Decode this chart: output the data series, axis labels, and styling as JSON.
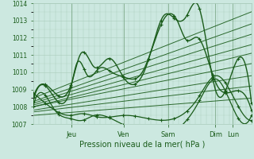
{
  "bg_color": "#cce8e0",
  "grid_color": "#aaccbb",
  "line_color": "#1a5c1a",
  "text_color": "#1a5c1a",
  "xlabel": "Pression niveau de la mer( hPa )",
  "ylim": [
    1007,
    1014
  ],
  "yticks": [
    1007,
    1008,
    1009,
    1010,
    1011,
    1012,
    1013,
    1014
  ],
  "xlim": [
    0,
    1
  ],
  "day_positions": [
    0.175,
    0.415,
    0.62,
    0.835,
    0.915
  ],
  "day_labels": [
    "Jeu",
    "Ven",
    "Sam",
    "Dim",
    "Lun"
  ],
  "straight_lines": [
    {
      "x0": 0.0,
      "y0": 1008.5,
      "x1": 1.0,
      "y1": 1013.5
    },
    {
      "x0": 0.0,
      "y0": 1008.3,
      "x1": 1.0,
      "y1": 1012.8
    },
    {
      "x0": 0.0,
      "y0": 1008.2,
      "x1": 1.0,
      "y1": 1012.2
    },
    {
      "x0": 0.0,
      "y0": 1008.1,
      "x1": 1.0,
      "y1": 1011.6
    },
    {
      "x0": 0.0,
      "y0": 1008.0,
      "x1": 1.0,
      "y1": 1011.1
    },
    {
      "x0": 0.0,
      "y0": 1008.0,
      "x1": 1.0,
      "y1": 1010.5
    },
    {
      "x0": 0.0,
      "y0": 1007.8,
      "x1": 1.0,
      "y1": 1009.8
    },
    {
      "x0": 0.0,
      "y0": 1007.7,
      "x1": 1.0,
      "y1": 1009.2
    },
    {
      "x0": 0.0,
      "y0": 1007.5,
      "x1": 1.0,
      "y1": 1008.5
    }
  ],
  "wavy_lines": [
    {
      "keypoints_x": [
        0.0,
        0.1,
        0.175,
        0.22,
        0.28,
        0.35,
        0.42,
        0.52,
        0.6,
        0.66,
        0.7,
        0.755,
        0.84,
        0.92,
        1.0
      ],
      "keypoints_y": [
        1008.5,
        1008.8,
        1009.3,
        1011.1,
        1010.3,
        1010.8,
        1009.6,
        1010.4,
        1013.3,
        1013.0,
        1013.2,
        1013.9,
        1008.8,
        1010.3,
        1008.2
      ],
      "marker": true,
      "lw": 1.0
    },
    {
      "keypoints_x": [
        0.0,
        0.1,
        0.175,
        0.2,
        0.25,
        0.3,
        0.36,
        0.42,
        0.5,
        0.6,
        0.66,
        0.7,
        0.755,
        0.84,
        0.92,
        1.0
      ],
      "keypoints_y": [
        1008.3,
        1008.5,
        1009.2,
        1010.5,
        1009.8,
        1010.2,
        1010.0,
        1009.7,
        1010.0,
        1013.1,
        1013.0,
        1011.9,
        1012.0,
        1009.3,
        1008.9,
        1007.8
      ],
      "marker": true,
      "lw": 1.0
    },
    {
      "keypoints_x": [
        0.0,
        0.1,
        0.175,
        0.22,
        0.3,
        0.42,
        0.755,
        0.84,
        0.92,
        1.0
      ],
      "keypoints_y": [
        1008.8,
        1007.8,
        1007.5,
        1007.6,
        1007.4,
        1007.5,
        1008.5,
        1009.8,
        1008.5,
        1007.2
      ],
      "marker": true,
      "lw": 0.9
    },
    {
      "keypoints_x": [
        0.0,
        0.08,
        0.1,
        0.175,
        0.22,
        0.28,
        0.36,
        0.755,
        0.84,
        0.92,
        1.0
      ],
      "keypoints_y": [
        1008.0,
        1008.2,
        1007.8,
        1007.3,
        1007.2,
        1007.5,
        1007.3,
        1008.2,
        1009.6,
        1007.8,
        1007.5
      ],
      "marker": true,
      "lw": 0.9
    }
  ]
}
